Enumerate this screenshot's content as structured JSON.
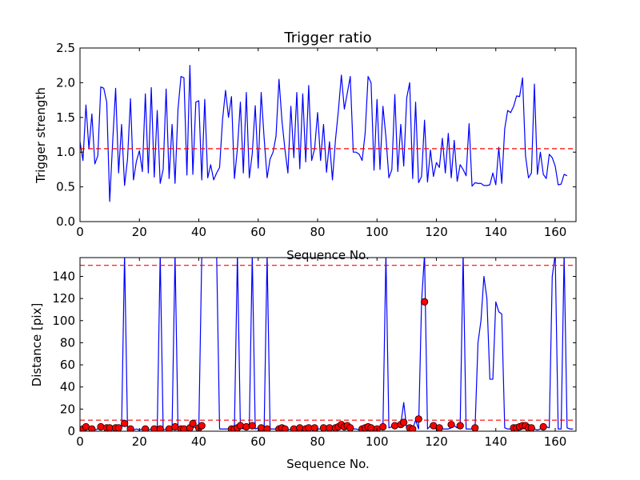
{
  "chart_data": [
    {
      "type": "line",
      "title": "Trigger ratio",
      "xlabel": "Sequence No.",
      "ylabel": "Trigger strength",
      "xlim": [
        0,
        167
      ],
      "ylim": [
        0,
        2.5
      ],
      "xticks": [
        "0",
        "20",
        "40",
        "60",
        "80",
        "100",
        "120",
        "140",
        "160"
      ],
      "yticks": [
        "0.0",
        "0.5",
        "1.0",
        "1.5",
        "2.0",
        "2.5"
      ],
      "threshold": 1.05,
      "line_color": "#0000ff",
      "threshold_color": "#ff0000",
      "series": [
        {
          "values": [
            1.15,
            0.88,
            1.68,
            1.05,
            1.55,
            0.83,
            0.95,
            1.94,
            1.92,
            1.72,
            0.29,
            1.15,
            1.92,
            0.7,
            1.4,
            0.52,
            0.9,
            1.77,
            0.6,
            0.87,
            1.02,
            0.72,
            1.84,
            0.7,
            1.93,
            0.64,
            1.6,
            0.55,
            0.75,
            1.91,
            0.62,
            1.4,
            0.55,
            1.62,
            2.09,
            2.07,
            0.67,
            2.25,
            0.68,
            1.72,
            1.74,
            0.6,
            1.76,
            0.63,
            0.82,
            0.6,
            0.7,
            0.78,
            1.47,
            1.89,
            1.5,
            1.8,
            0.62,
            1.05,
            1.72,
            0.7,
            1.86,
            0.63,
            0.98,
            1.67,
            0.77,
            1.86,
            1.2,
            0.63,
            0.9,
            1.0,
            1.23,
            2.05,
            1.45,
            1.04,
            0.7,
            1.66,
            0.92,
            1.86,
            0.76,
            1.84,
            0.86,
            1.96,
            0.88,
            1.05,
            1.57,
            0.88,
            1.4,
            0.71,
            1.15,
            0.6,
            1.17,
            1.6,
            2.11,
            1.62,
            1.85,
            2.09,
            1.0,
            1.0,
            0.97,
            0.88,
            1.27,
            2.09,
            2.0,
            0.74,
            1.76,
            0.75,
            1.66,
            1.22,
            0.63,
            0.75,
            1.83,
            0.72,
            1.4,
            0.8,
            1.78,
            2.0,
            0.62,
            1.72,
            0.56,
            0.65,
            1.46,
            0.57,
            1.03,
            0.65,
            0.85,
            0.78,
            1.2,
            0.7,
            1.27,
            0.63,
            1.17,
            0.58,
            0.82,
            0.75,
            0.66,
            1.41,
            0.51,
            0.56,
            0.55,
            0.55,
            0.52,
            0.52,
            0.53,
            0.7,
            0.53,
            1.07,
            0.55,
            1.34,
            1.6,
            1.57,
            1.66,
            1.81,
            1.8,
            2.07,
            0.95,
            0.63,
            0.7,
            1.98,
            0.68,
            1.0,
            0.68,
            0.62,
            0.97,
            0.92,
            0.8,
            0.53,
            0.54,
            0.68,
            0.66
          ]
        }
      ]
    },
    {
      "type": "line",
      "title": "",
      "xlabel": "Sequence No.",
      "ylabel": "Distance [pix]",
      "xlim": [
        0,
        167
      ],
      "ylim": [
        0,
        157
      ],
      "xticks": [
        "0",
        "20",
        "40",
        "60",
        "80",
        "100",
        "120",
        "140",
        "160"
      ],
      "yticks": [
        "0",
        "20",
        "40",
        "60",
        "80",
        "100",
        "120",
        "140"
      ],
      "thresholds": [
        10,
        150
      ],
      "line_color": "#0000ff",
      "marker_color": "#ff0000",
      "threshold_color": "#ff0000",
      "series": [
        {
          "values": [
            1,
            3,
            2,
            2,
            3,
            1,
            2,
            3,
            2,
            3,
            2,
            2,
            3,
            2,
            3,
            160,
            2,
            1,
            1,
            2,
            1,
            2,
            2,
            1,
            2,
            2,
            1,
            160,
            1,
            2,
            1,
            3,
            160,
            2,
            2,
            3,
            2,
            5,
            4,
            3,
            2,
            160,
            160,
            160,
            160,
            160,
            160,
            2,
            2,
            2,
            2,
            3,
            4,
            160,
            3,
            2,
            3,
            4,
            160,
            2,
            3,
            2,
            2,
            160,
            2,
            2,
            2,
            2,
            3,
            2,
            1,
            2,
            2,
            2,
            2,
            3,
            2,
            2,
            3,
            2,
            2,
            2,
            3,
            2,
            3,
            2,
            2,
            2,
            3,
            5,
            4,
            3,
            2,
            2,
            1,
            2,
            1,
            3,
            2,
            2,
            1,
            3,
            3,
            160,
            3,
            4,
            5,
            4,
            6,
            26,
            2,
            2,
            2,
            10,
            2,
            117,
            160,
            2,
            5,
            3,
            2,
            1,
            2,
            2,
            2,
            3,
            5,
            3,
            5,
            160,
            2,
            2,
            2,
            2,
            80,
            100,
            140,
            120,
            47,
            47,
            117,
            108,
            106,
            3,
            2,
            2,
            2,
            3,
            2,
            3,
            3,
            4,
            3,
            2,
            1,
            2,
            3,
            4,
            3,
            140,
            160,
            2,
            2,
            160,
            3,
            2,
            2
          ]
        }
      ],
      "markers": [
        {
          "x": 1,
          "y": 2
        },
        {
          "x": 2,
          "y": 4
        },
        {
          "x": 4,
          "y": 2
        },
        {
          "x": 7,
          "y": 4
        },
        {
          "x": 9,
          "y": 3
        },
        {
          "x": 10,
          "y": 3
        },
        {
          "x": 12,
          "y": 3
        },
        {
          "x": 13,
          "y": 3
        },
        {
          "x": 15,
          "y": 7
        },
        {
          "x": 17,
          "y": 2
        },
        {
          "x": 22,
          "y": 2
        },
        {
          "x": 25,
          "y": 2
        },
        {
          "x": 27,
          "y": 2
        },
        {
          "x": 30,
          "y": 2
        },
        {
          "x": 32,
          "y": 4
        },
        {
          "x": 34,
          "y": 2
        },
        {
          "x": 35,
          "y": 2
        },
        {
          "x": 37,
          "y": 3
        },
        {
          "x": 38,
          "y": 7
        },
        {
          "x": 40,
          "y": 3
        },
        {
          "x": 41,
          "y": 5
        },
        {
          "x": 51,
          "y": 2
        },
        {
          "x": 52,
          "y": 2
        },
        {
          "x": 53,
          "y": 3
        },
        {
          "x": 54,
          "y": 5
        },
        {
          "x": 56,
          "y": 4
        },
        {
          "x": 58,
          "y": 5
        },
        {
          "x": 61,
          "y": 3
        },
        {
          "x": 63,
          "y": 2
        },
        {
          "x": 67,
          "y": 2
        },
        {
          "x": 68,
          "y": 3
        },
        {
          "x": 69,
          "y": 2
        },
        {
          "x": 72,
          "y": 2
        },
        {
          "x": 74,
          "y": 3
        },
        {
          "x": 76,
          "y": 2
        },
        {
          "x": 77,
          "y": 3
        },
        {
          "x": 79,
          "y": 3
        },
        {
          "x": 82,
          "y": 3
        },
        {
          "x": 84,
          "y": 3
        },
        {
          "x": 86,
          "y": 3
        },
        {
          "x": 87,
          "y": 4
        },
        {
          "x": 88,
          "y": 6
        },
        {
          "x": 89,
          "y": 4
        },
        {
          "x": 90,
          "y": 5
        },
        {
          "x": 91,
          "y": 3
        },
        {
          "x": 95,
          "y": 2
        },
        {
          "x": 96,
          "y": 3
        },
        {
          "x": 97,
          "y": 4
        },
        {
          "x": 98,
          "y": 3
        },
        {
          "x": 100,
          "y": 2
        },
        {
          "x": 102,
          "y": 4
        },
        {
          "x": 106,
          "y": 5
        },
        {
          "x": 108,
          "y": 6
        },
        {
          "x": 109,
          "y": 8
        },
        {
          "x": 111,
          "y": 3
        },
        {
          "x": 112,
          "y": 2
        },
        {
          "x": 114,
          "y": 11
        },
        {
          "x": 116,
          "y": 117
        },
        {
          "x": 119,
          "y": 5
        },
        {
          "x": 121,
          "y": 3
        },
        {
          "x": 125,
          "y": 6
        },
        {
          "x": 128,
          "y": 5
        },
        {
          "x": 133,
          "y": 3
        },
        {
          "x": 146,
          "y": 3
        },
        {
          "x": 147,
          "y": 3
        },
        {
          "x": 148,
          "y": 4
        },
        {
          "x": 149,
          "y": 5
        },
        {
          "x": 150,
          "y": 5
        },
        {
          "x": 151,
          "y": 3
        },
        {
          "x": 152,
          "y": 3
        },
        {
          "x": 156,
          "y": 4
        }
      ]
    }
  ]
}
